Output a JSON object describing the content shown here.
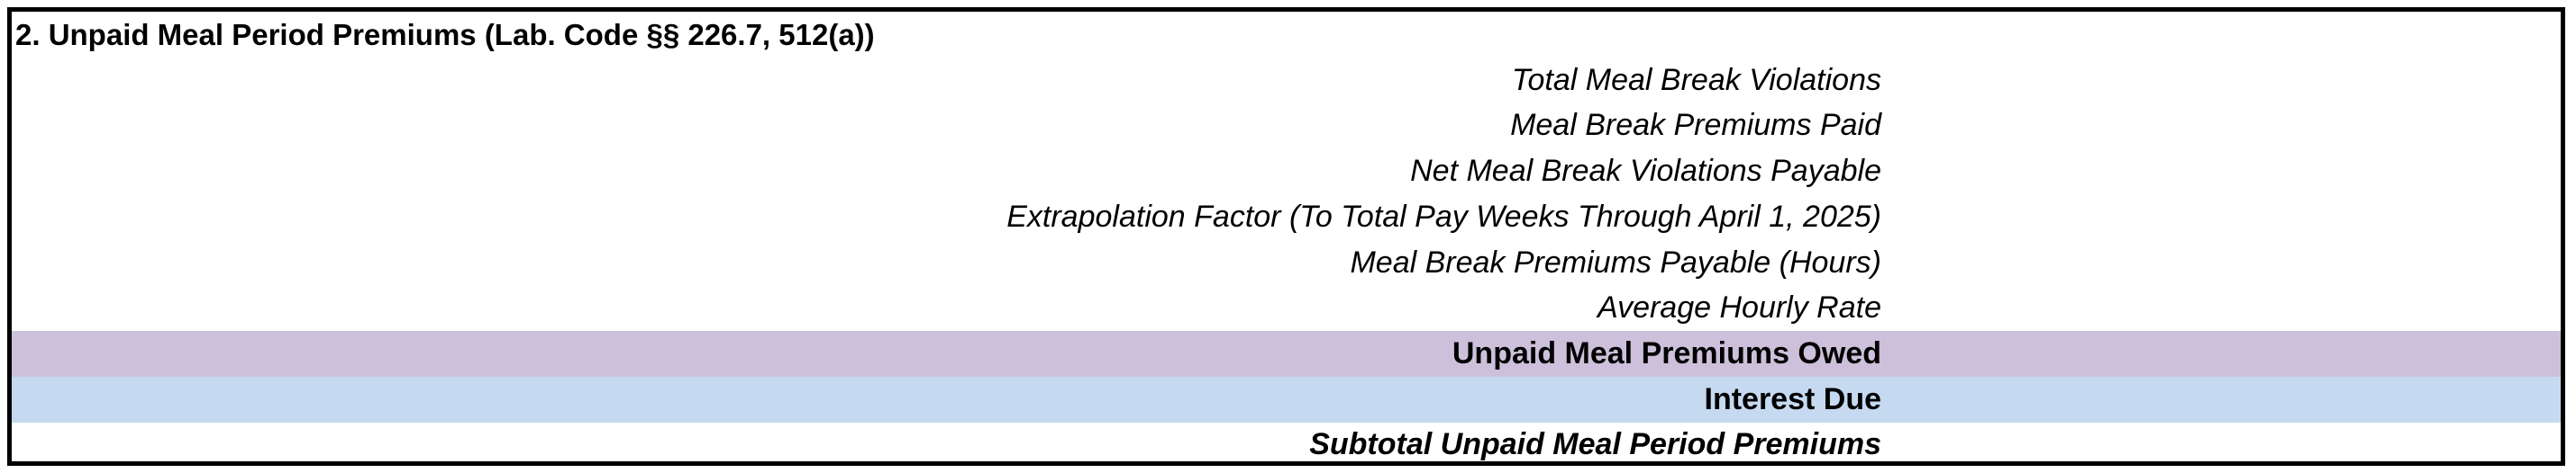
{
  "section": {
    "title": "2. Unpaid Meal Period Premiums (Lab. Code §§ 226.7, 512(a))"
  },
  "colors": {
    "owed_row_fill": "#ccc0da",
    "interest_row_fill": "#c5d9f1",
    "border": "#000000"
  },
  "rows": [
    {
      "label": "Total Meal Break Violations",
      "style": "italic"
    },
    {
      "label": "Meal Break Premiums Paid",
      "style": "italic"
    },
    {
      "label": "Net Meal Break Violations Payable",
      "style": "italic"
    },
    {
      "label": "Extrapolation Factor (To Total Pay Weeks Through April 1, 2025)",
      "style": "italic"
    },
    {
      "label": "Meal Break Premiums Payable (Hours)",
      "style": "italic"
    },
    {
      "label": "Average Hourly Rate",
      "style": "italic"
    },
    {
      "label": "Unpaid Meal Premiums Owed",
      "style": "bold"
    },
    {
      "label": "Interest Due",
      "style": "bold"
    },
    {
      "label": "Subtotal Unpaid Meal Period Premiums",
      "style": "bold-italic"
    }
  ]
}
